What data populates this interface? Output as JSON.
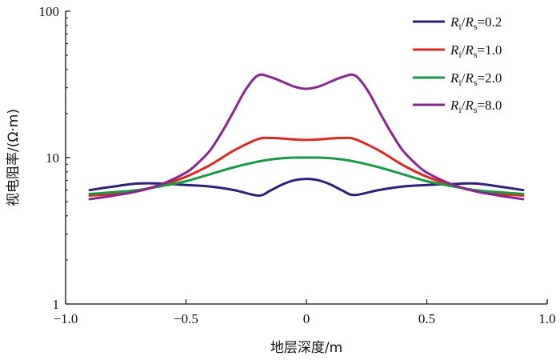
{
  "chart_data": {
    "type": "line",
    "xlabel": "地层深度/m",
    "ylabel": "视电阻率/(Ω·m)",
    "xlim": [
      -1.0,
      1.0
    ],
    "ylim": [
      1,
      100
    ],
    "yscale": "log",
    "xticks": [
      -1.0,
      -0.5,
      0,
      0.5,
      1.0
    ],
    "xtick_labels": [
      "−1.0",
      "−0.5",
      "0",
      "0.5",
      "1.0"
    ],
    "yticks": [
      1,
      10,
      100
    ],
    "ytick_labels": [
      "1",
      "10",
      "100"
    ],
    "grid": false,
    "legend_position": "top-right",
    "series": [
      {
        "legend": {
          "R": "R",
          "sub1": "i",
          "slash": "/",
          "sub2": "s",
          "value": "=0.2"
        },
        "color": "#2f1f7a",
        "x": [
          -0.9,
          -0.8,
          -0.7,
          -0.6,
          -0.5,
          -0.4,
          -0.3,
          -0.2,
          -0.15,
          -0.1,
          -0.05,
          0,
          0.05,
          0.1,
          0.15,
          0.2,
          0.3,
          0.4,
          0.5,
          0.6,
          0.7,
          0.8,
          0.9
        ],
        "y": [
          6.0,
          6.35,
          6.65,
          6.65,
          6.5,
          6.35,
          6.0,
          5.5,
          5.95,
          6.55,
          7.0,
          7.15,
          7.0,
          6.55,
          5.95,
          5.55,
          6.0,
          6.35,
          6.5,
          6.6,
          6.65,
          6.35,
          6.0
        ]
      },
      {
        "legend": {
          "R": "R",
          "sub1": "i",
          "slash": "/",
          "sub2": "s",
          "value": "=1.0"
        },
        "color": "#e0261e",
        "x": [
          -0.9,
          -0.8,
          -0.7,
          -0.6,
          -0.5,
          -0.4,
          -0.3,
          -0.2,
          -0.15,
          -0.1,
          -0.05,
          0,
          0.05,
          0.1,
          0.15,
          0.2,
          0.3,
          0.4,
          0.5,
          0.6,
          0.7,
          0.8,
          0.9
        ],
        "y": [
          5.5,
          5.65,
          5.9,
          6.5,
          7.4,
          8.9,
          11.2,
          13.4,
          13.6,
          13.5,
          13.3,
          13.2,
          13.3,
          13.5,
          13.6,
          13.4,
          11.2,
          8.9,
          7.4,
          6.5,
          5.9,
          5.65,
          5.5
        ]
      },
      {
        "legend": {
          "R": "R",
          "sub1": "i",
          "slash": "/",
          "sub2": "s",
          "value": "=2.0"
        },
        "color": "#169a46",
        "x": [
          -0.9,
          -0.8,
          -0.7,
          -0.6,
          -0.5,
          -0.4,
          -0.3,
          -0.2,
          -0.15,
          -0.1,
          -0.05,
          0,
          0.05,
          0.1,
          0.15,
          0.2,
          0.3,
          0.4,
          0.5,
          0.6,
          0.7,
          0.8,
          0.9
        ],
        "y": [
          5.65,
          5.8,
          6.0,
          6.4,
          6.9,
          7.7,
          8.6,
          9.4,
          9.7,
          9.9,
          10.0,
          10.0,
          10.0,
          9.9,
          9.7,
          9.4,
          8.6,
          7.7,
          6.9,
          6.4,
          6.0,
          5.8,
          5.65
        ]
      },
      {
        "legend": {
          "R": "R",
          "sub1": "i",
          "slash": "/",
          "sub2": "s",
          "value": "=8.0"
        },
        "color": "#87268c",
        "x": [
          -0.9,
          -0.8,
          -0.7,
          -0.6,
          -0.5,
          -0.45,
          -0.4,
          -0.35,
          -0.3,
          -0.25,
          -0.2,
          -0.15,
          -0.1,
          -0.05,
          0,
          0.05,
          0.1,
          0.15,
          0.2,
          0.25,
          0.3,
          0.35,
          0.4,
          0.45,
          0.5,
          0.6,
          0.7,
          0.8,
          0.9
        ],
        "y": [
          5.2,
          5.5,
          5.9,
          6.6,
          7.9,
          9.2,
          11.2,
          15.0,
          21.0,
          29.5,
          36.5,
          35.5,
          33.0,
          30.5,
          29.5,
          30.5,
          33.0,
          35.5,
          36.5,
          29.5,
          21.0,
          15.0,
          11.2,
          9.2,
          7.9,
          6.6,
          5.9,
          5.5,
          5.2
        ]
      }
    ]
  }
}
